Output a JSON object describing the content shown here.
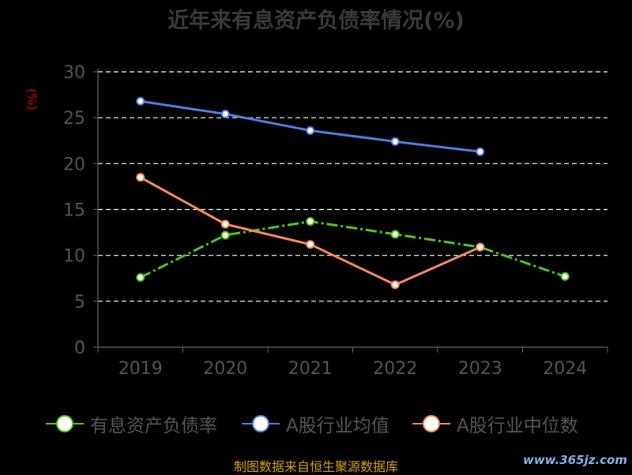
{
  "title": "近年来有息资产负债率情况(%)",
  "y_unit": "(%)",
  "source": "制图数据来自恒生聚源数据库",
  "watermark": "www.365jz.com",
  "chart_data": {
    "type": "line",
    "title": "近年来有息资产负债率情况(%)",
    "xlabel": "",
    "ylabel": "(%)",
    "categories": [
      "2019",
      "2020",
      "2021",
      "2022",
      "2023",
      "2024"
    ],
    "ylim": [
      0,
      30
    ],
    "yticks": [
      0,
      5,
      10,
      15,
      20,
      25,
      30
    ],
    "grid": true,
    "legend_position": "bottom",
    "series": [
      {
        "name": "有息资产负债率",
        "color": "#52c41a",
        "style": "dash-dot",
        "values": [
          7.6,
          12.2,
          13.7,
          12.3,
          10.9,
          7.7
        ]
      },
      {
        "name": "A股行业均值",
        "color": "#4f7fe0",
        "style": "solid",
        "values": [
          26.8,
          25.4,
          23.6,
          22.4,
          21.3,
          null
        ]
      },
      {
        "name": "A股行业中位数",
        "color": "#f88a5b",
        "style": "solid",
        "values": [
          18.5,
          13.4,
          11.2,
          6.8,
          10.9,
          null
        ]
      }
    ]
  }
}
